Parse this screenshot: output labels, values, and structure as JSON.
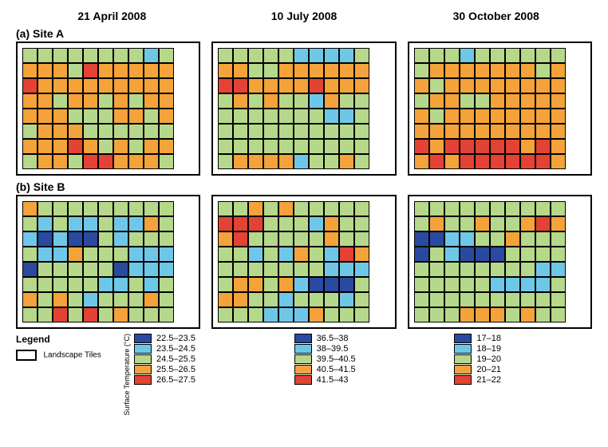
{
  "dates": [
    "21 April 2008",
    "10 July 2008",
    "30 October 2008"
  ],
  "sites": [
    {
      "key": "a",
      "label": "(a) Site A"
    },
    {
      "key": "b",
      "label": "(b) Site B"
    }
  ],
  "grid": {
    "cols": 10
  },
  "colors": {
    "darkblue": "#2a4aa0",
    "lightblue": "#6fc7e8",
    "green": "#b6d88a",
    "orange": "#f4a23a",
    "red": "#e34234",
    "border": "#000000",
    "panel_border": "#000000",
    "background": "#ffffff"
  },
  "heatmaps": {
    "a": [
      [
        [
          2,
          2,
          2,
          2,
          2,
          2,
          2,
          2,
          1,
          2
        ],
        [
          3,
          3,
          3,
          2,
          4,
          3,
          3,
          3,
          3,
          3
        ],
        [
          4,
          3,
          3,
          3,
          3,
          3,
          3,
          3,
          3,
          3
        ],
        [
          3,
          3,
          2,
          3,
          3,
          2,
          3,
          2,
          3,
          3
        ],
        [
          3,
          3,
          3,
          2,
          2,
          2,
          3,
          3,
          2,
          3
        ],
        [
          2,
          3,
          3,
          3,
          2,
          2,
          2,
          2,
          2,
          2
        ],
        [
          3,
          3,
          3,
          4,
          3,
          2,
          3,
          2,
          3,
          3
        ],
        [
          2,
          3,
          3,
          2,
          4,
          4,
          3,
          3,
          3,
          2
        ]
      ],
      [
        [
          2,
          2,
          2,
          2,
          2,
          1,
          1,
          1,
          1,
          2
        ],
        [
          3,
          3,
          2,
          2,
          3,
          3,
          3,
          3,
          3,
          3
        ],
        [
          4,
          4,
          3,
          3,
          3,
          3,
          4,
          3,
          3,
          3
        ],
        [
          2,
          3,
          2,
          3,
          2,
          2,
          1,
          3,
          2,
          2
        ],
        [
          2,
          2,
          2,
          2,
          2,
          2,
          2,
          1,
          1,
          2
        ],
        [
          2,
          2,
          2,
          2,
          2,
          2,
          2,
          2,
          2,
          2
        ],
        [
          2,
          2,
          2,
          2,
          2,
          2,
          2,
          2,
          2,
          2
        ],
        [
          2,
          3,
          3,
          3,
          3,
          1,
          2,
          2,
          3,
          2
        ]
      ],
      [
        [
          2,
          2,
          2,
          1,
          2,
          2,
          2,
          2,
          2,
          2
        ],
        [
          2,
          3,
          3,
          3,
          3,
          3,
          3,
          3,
          2,
          3
        ],
        [
          3,
          2,
          3,
          3,
          3,
          3,
          3,
          3,
          3,
          3
        ],
        [
          2,
          3,
          3,
          2,
          2,
          3,
          3,
          3,
          3,
          3
        ],
        [
          3,
          2,
          3,
          3,
          3,
          3,
          3,
          3,
          3,
          3
        ],
        [
          3,
          3,
          3,
          3,
          3,
          3,
          3,
          3,
          3,
          3
        ],
        [
          4,
          3,
          4,
          4,
          4,
          4,
          4,
          3,
          4,
          3
        ],
        [
          3,
          4,
          3,
          4,
          4,
          4,
          4,
          4,
          4,
          3
        ]
      ]
    ],
    "b": [
      [
        [
          3,
          2,
          2,
          2,
          2,
          2,
          2,
          2,
          2,
          2
        ],
        [
          2,
          1,
          2,
          1,
          1,
          2,
          1,
          1,
          3,
          2
        ],
        [
          1,
          0,
          1,
          0,
          0,
          2,
          1,
          2,
          2,
          2
        ],
        [
          2,
          1,
          1,
          3,
          2,
          2,
          2,
          1,
          1,
          1
        ],
        [
          0,
          2,
          2,
          2,
          2,
          2,
          0,
          1,
          1,
          1
        ],
        [
          2,
          2,
          2,
          2,
          2,
          1,
          1,
          2,
          1,
          2
        ],
        [
          3,
          2,
          3,
          2,
          1,
          2,
          2,
          2,
          3,
          2
        ],
        [
          2,
          2,
          4,
          2,
          4,
          2,
          3,
          2,
          2,
          2
        ]
      ],
      [
        [
          2,
          2,
          3,
          2,
          3,
          2,
          2,
          2,
          2,
          2
        ],
        [
          4,
          4,
          4,
          2,
          2,
          2,
          1,
          3,
          2,
          2
        ],
        [
          3,
          4,
          2,
          2,
          2,
          2,
          2,
          3,
          2,
          2
        ],
        [
          2,
          2,
          1,
          2,
          1,
          3,
          2,
          1,
          4,
          3
        ],
        [
          2,
          2,
          2,
          2,
          2,
          2,
          2,
          1,
          1,
          1
        ],
        [
          2,
          3,
          3,
          2,
          3,
          1,
          0,
          0,
          0,
          2
        ],
        [
          3,
          3,
          2,
          2,
          1,
          2,
          2,
          2,
          1,
          2
        ],
        [
          2,
          2,
          2,
          1,
          1,
          1,
          3,
          2,
          2,
          2
        ]
      ],
      [
        [
          2,
          2,
          2,
          2,
          2,
          2,
          2,
          2,
          2,
          2
        ],
        [
          2,
          3,
          2,
          2,
          3,
          2,
          2,
          3,
          4,
          3
        ],
        [
          0,
          0,
          1,
          1,
          2,
          2,
          3,
          2,
          2,
          2
        ],
        [
          0,
          2,
          1,
          0,
          0,
          0,
          2,
          2,
          2,
          2
        ],
        [
          2,
          2,
          2,
          2,
          2,
          2,
          2,
          2,
          1,
          1
        ],
        [
          2,
          2,
          2,
          2,
          2,
          1,
          1,
          1,
          1,
          2
        ],
        [
          2,
          2,
          2,
          2,
          2,
          2,
          2,
          2,
          2,
          2
        ],
        [
          2,
          2,
          2,
          3,
          3,
          3,
          2,
          3,
          2,
          2
        ]
      ]
    ]
  },
  "color_levels": [
    "darkblue",
    "lightblue",
    "green",
    "orange",
    "red"
  ],
  "legend": {
    "title": "Legend",
    "tile_label": "Landscape Tiles",
    "ylabel": "Surface Temperature (°C)",
    "columns": [
      {
        "ranges": [
          "22.5–23.5",
          "23.5–24.5",
          "24.5–25.5",
          "25.5–26.5",
          "26.5–27.5"
        ]
      },
      {
        "ranges": [
          "36.5–38",
          "38–39.5",
          "39.5–40.5",
          "40.5–41.5",
          "41.5–43"
        ]
      },
      {
        "ranges": [
          "17–18",
          "18–19",
          "19–20",
          "20–21",
          "21–22"
        ]
      }
    ]
  },
  "style": {
    "cell_size_a": 19,
    "cell_size_b": 19,
    "title_fontsize": 14,
    "legend_fontsize": 11
  }
}
